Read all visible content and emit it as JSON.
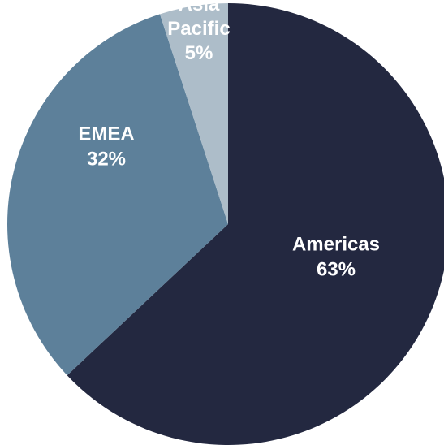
{
  "chart_data": {
    "type": "pie",
    "slices": [
      {
        "name": "Americas",
        "value": 63,
        "value_label": "63%",
        "color": "#232840"
      },
      {
        "name": "EMEA",
        "value": 32,
        "value_label": "32%",
        "color": "#5d809a"
      },
      {
        "name": "Asia Pacific",
        "name_lines": [
          "Asia",
          "Pacific"
        ],
        "value": 5,
        "value_label": "5%",
        "color": "#adbdc9"
      }
    ],
    "start": "12 o'clock",
    "direction": "clockwise",
    "legend": "none"
  }
}
